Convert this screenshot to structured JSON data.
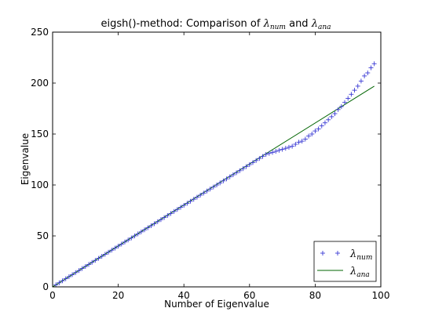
{
  "chart_data": {
    "type": "line",
    "title": {
      "prefix": "eigsh()-method: Comparison of ",
      "sym1": "λ",
      "sub1": "num",
      "middle": " and ",
      "sym2": "λ",
      "sub2": "ana"
    },
    "xlabel": "Number of Eigenvalue",
    "ylabel": "Eigenvalue",
    "xlim": [
      0,
      100
    ],
    "ylim": [
      0,
      250
    ],
    "xticks": [
      0,
      20,
      40,
      60,
      80,
      100
    ],
    "yticks": [
      0,
      50,
      100,
      150,
      200,
      250
    ],
    "grid": false,
    "legend_position": "lower-right",
    "series": [
      {
        "name_symbol": "λ",
        "name_sub": "num",
        "style": "markers",
        "marker": "+",
        "color": "#3a3ad4",
        "x": [
          1,
          2,
          3,
          4,
          5,
          6,
          7,
          8,
          9,
          10,
          11,
          12,
          13,
          14,
          15,
          16,
          17,
          18,
          19,
          20,
          21,
          22,
          23,
          24,
          25,
          26,
          27,
          28,
          29,
          30,
          31,
          32,
          33,
          34,
          35,
          36,
          37,
          38,
          39,
          40,
          41,
          42,
          43,
          44,
          45,
          46,
          47,
          48,
          49,
          50,
          51,
          52,
          53,
          54,
          55,
          56,
          57,
          58,
          59,
          60,
          61,
          62,
          63,
          64,
          65,
          66,
          67,
          68,
          69,
          70,
          71,
          72,
          73,
          74,
          75,
          76,
          77,
          78,
          79,
          80,
          81,
          82,
          83,
          84,
          85,
          86,
          87,
          88,
          89,
          90,
          91,
          92,
          93,
          94,
          95,
          96,
          97,
          98
        ],
        "y": [
          2,
          4,
          6,
          8,
          10,
          12,
          14,
          16,
          18,
          20,
          22,
          24,
          26,
          28,
          30,
          32,
          34,
          36,
          38,
          40,
          42,
          44,
          46,
          48,
          50,
          52,
          54,
          56,
          58,
          60,
          62,
          64,
          66,
          68,
          70,
          72,
          74,
          76,
          78,
          80,
          82,
          84,
          86,
          88,
          90,
          92,
          94,
          96,
          98,
          100,
          102,
          104,
          106,
          108,
          110,
          112,
          114,
          116,
          118,
          120,
          122,
          124,
          126,
          128,
          130,
          131,
          132,
          133,
          134,
          135,
          136,
          137,
          138,
          140,
          142,
          143,
          145,
          148,
          150,
          153,
          155,
          158,
          161,
          164,
          167,
          170,
          174,
          177,
          181,
          185,
          189,
          193,
          197,
          202,
          207,
          210,
          215,
          219
        ]
      },
      {
        "name_symbol": "λ",
        "name_sub": "ana",
        "style": "line",
        "color": "#006400",
        "x": [
          0,
          98
        ],
        "y": [
          0,
          197
        ]
      }
    ]
  }
}
